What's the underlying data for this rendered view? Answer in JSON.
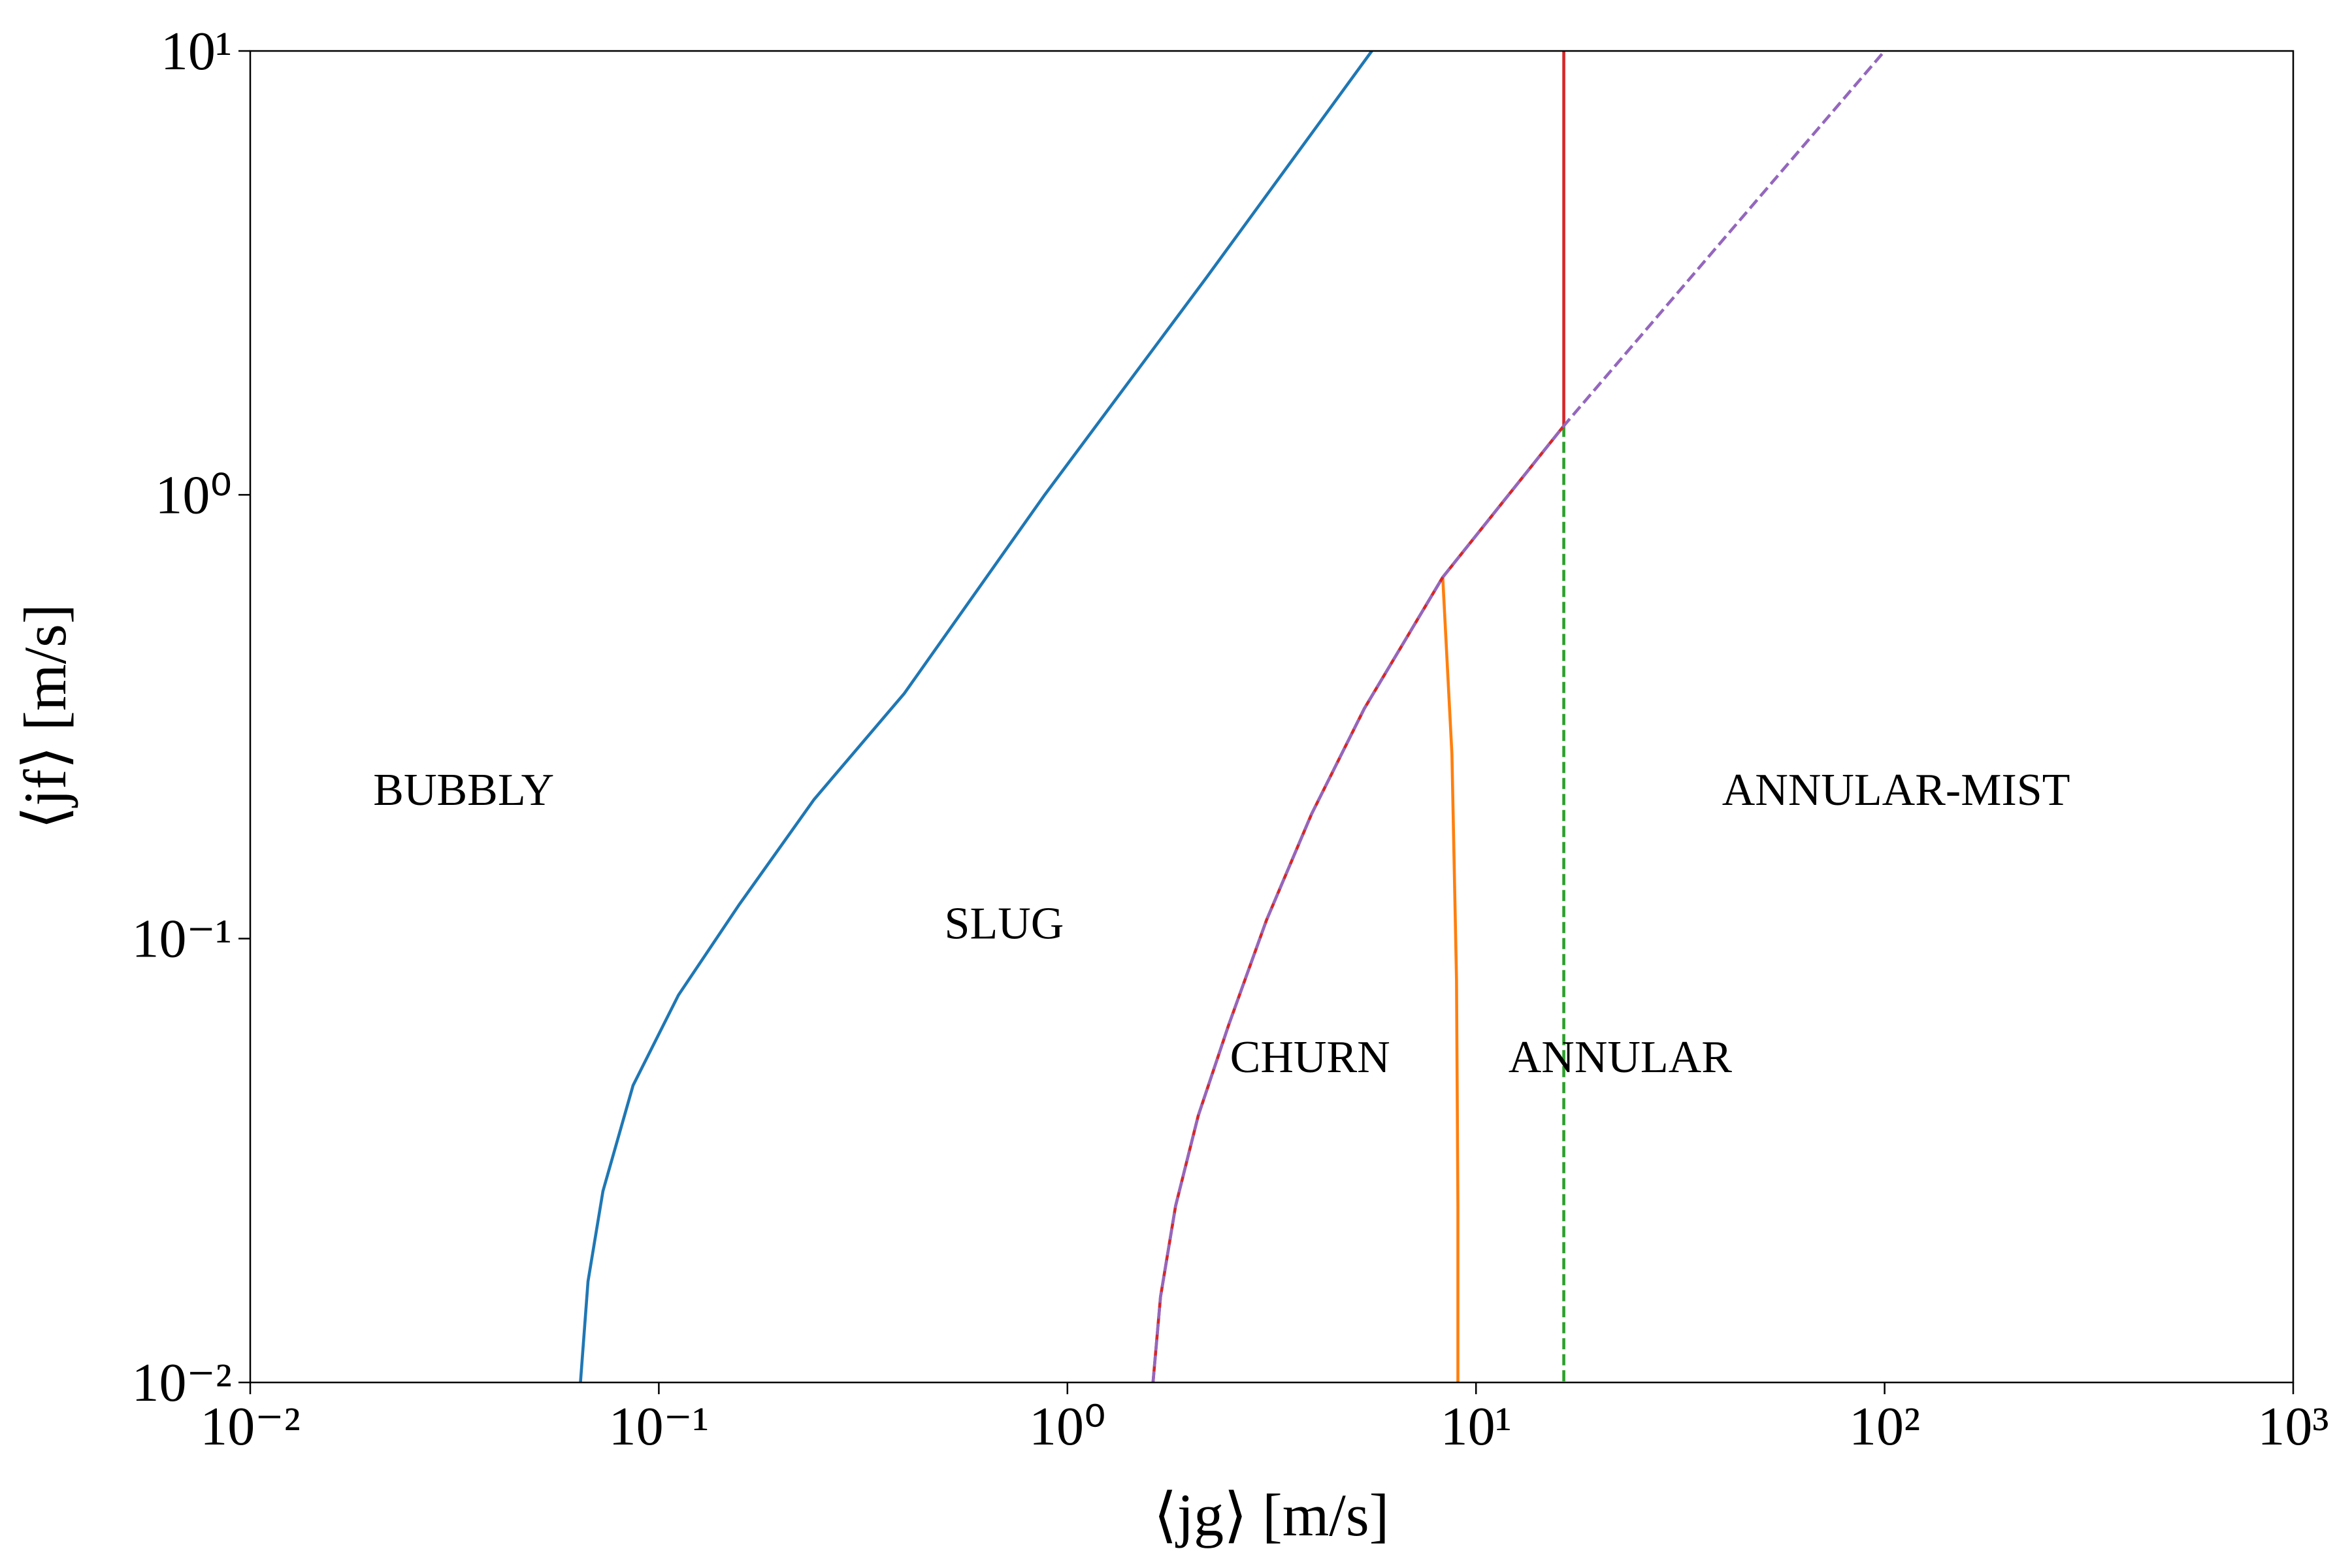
{
  "chart_data": {
    "type": "line",
    "xlabel": "⟨jg⟩ [m/s]",
    "ylabel": "⟨jf⟩ [m/s]",
    "xscale": "log",
    "yscale": "log",
    "xlim": [
      0.01,
      1000
    ],
    "ylim": [
      0.01,
      10
    ],
    "xticks": [
      {
        "value": 0.01,
        "label": "10⁻²"
      },
      {
        "value": 0.1,
        "label": "10⁻¹"
      },
      {
        "value": 1,
        "label": "10⁰"
      },
      {
        "value": 10,
        "label": "10¹"
      },
      {
        "value": 100,
        "label": "10²"
      },
      {
        "value": 1000,
        "label": "10³"
      }
    ],
    "yticks": [
      {
        "value": 0.01,
        "label": "10⁻²"
      },
      {
        "value": 0.1,
        "label": "10⁻¹"
      },
      {
        "value": 1,
        "label": "10⁰"
      },
      {
        "value": 10,
        "label": "10¹"
      }
    ],
    "grid": false,
    "series": [
      {
        "color": "#1f77b4",
        "dashed": false,
        "x": [
          0.0643,
          0.0671,
          0.073,
          0.0865,
          0.1117,
          0.157,
          0.24,
          0.399,
          0.88,
          2.18,
          5.56
        ],
        "values": [
          0.01,
          0.0169,
          0.027,
          0.0467,
          0.0746,
          0.119,
          0.206,
          0.357,
          1.0,
          3.07,
          10
        ]
      },
      {
        "color": "#ff7f0e",
        "dashed": false,
        "x": [
          8.29,
          8.73,
          8.96,
          9.03,
          9.03
        ],
        "values": [
          0.652,
          0.261,
          0.0807,
          0.025,
          0.01
        ]
      },
      {
        "color": "#2ca02c",
        "dashed": true,
        "x": [
          16.4,
          16.4
        ],
        "values": [
          1.43,
          0.01
        ]
      },
      {
        "color": "#d62728",
        "dashed": false,
        "x": [
          1.62,
          1.69,
          1.84,
          2.09,
          2.48,
          3.07,
          3.96,
          5.33,
          8.29,
          16.4,
          16.4
        ],
        "values": [
          0.01,
          0.0156,
          0.025,
          0.0399,
          0.0638,
          0.11,
          0.191,
          0.33,
          0.652,
          1.43,
          10
        ]
      },
      {
        "color": "#9467bd",
        "dashed": true,
        "x": [
          1.62,
          1.69,
          1.84,
          2.09,
          2.48,
          3.07,
          3.96,
          5.33,
          8.29,
          16.4,
          100
        ],
        "values": [
          0.01,
          0.0156,
          0.025,
          0.0399,
          0.0638,
          0.11,
          0.191,
          0.33,
          0.652,
          1.43,
          10
        ]
      }
    ],
    "annotations": [
      {
        "text": "BUBBLY",
        "x": 0.02,
        "y": 0.2
      },
      {
        "text": "SLUG",
        "x": 0.5,
        "y": 0.1
      },
      {
        "text": "CHURN",
        "x": 2.5,
        "y": 0.05
      },
      {
        "text": "ANNULAR",
        "x": 12,
        "y": 0.05
      },
      {
        "text": "ANNULAR-MIST",
        "x": 40,
        "y": 0.2
      }
    ]
  }
}
